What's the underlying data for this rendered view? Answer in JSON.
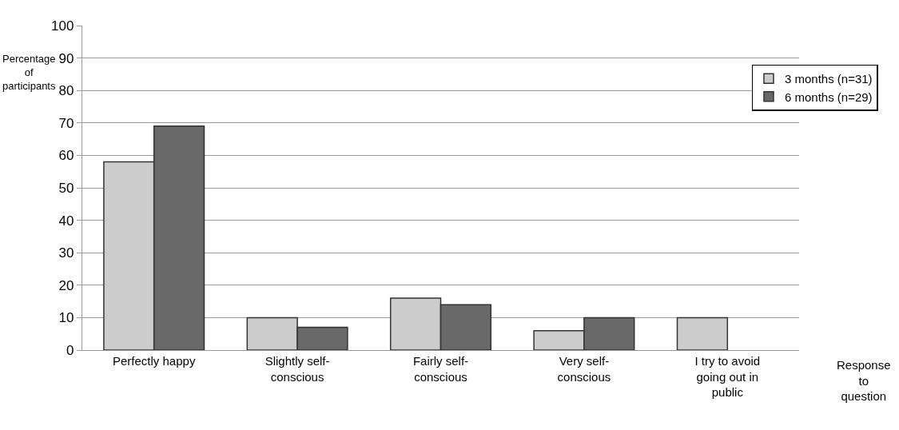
{
  "chart_data": {
    "type": "bar",
    "categories": [
      "Perfectly happy",
      "Slightly self-conscious",
      "Fairly self-conscious",
      "Very self-conscious",
      "I try to avoid going out in public"
    ],
    "series": [
      {
        "name": "3 months (n=31)",
        "color": "#cccccc",
        "values": [
          58,
          10,
          16,
          6,
          10
        ]
      },
      {
        "name": "6 months (n=29)",
        "color": "#696969",
        "values": [
          69,
          7,
          14,
          10,
          null
        ]
      }
    ],
    "xlabel": "Response to question",
    "ylabel": "Percentage of participants",
    "ylim": [
      0,
      100
    ],
    "yticks": [
      0,
      10,
      20,
      30,
      40,
      50,
      60,
      70,
      80,
      90,
      100
    ],
    "grid": "y",
    "legend": "top right"
  }
}
